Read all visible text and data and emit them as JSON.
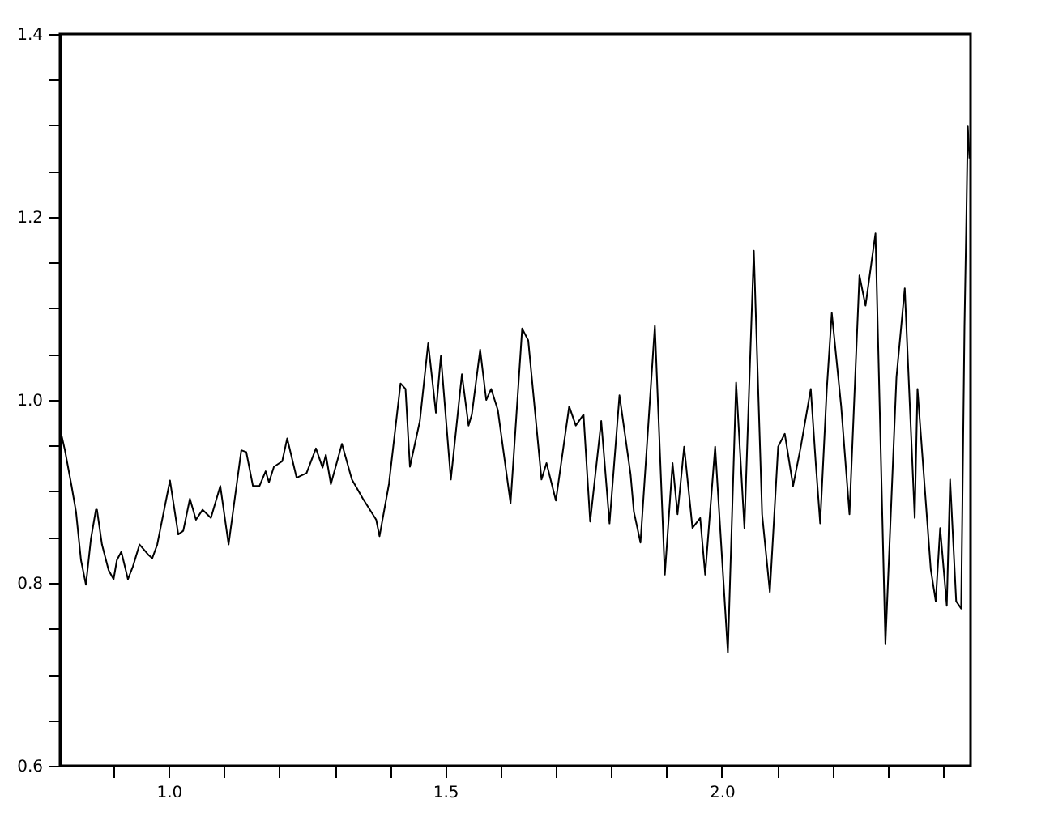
{
  "chart_data": {
    "type": "line",
    "xlim": [
      0.803,
      2.45
    ],
    "ylim": [
      0.6,
      1.4
    ],
    "xticks": [
      {
        "value": 0.9,
        "label": null
      },
      {
        "value": 1.0,
        "label": "1.0"
      },
      {
        "value": 1.1,
        "label": null
      },
      {
        "value": 1.2,
        "label": null
      },
      {
        "value": 1.3,
        "label": null
      },
      {
        "value": 1.4,
        "label": null
      },
      {
        "value": 1.5,
        "label": "1.5"
      },
      {
        "value": 1.6,
        "label": null
      },
      {
        "value": 1.7,
        "label": null
      },
      {
        "value": 1.8,
        "label": null
      },
      {
        "value": 1.9,
        "label": null
      },
      {
        "value": 2.0,
        "label": "2.0"
      },
      {
        "value": 2.1,
        "label": null
      },
      {
        "value": 2.2,
        "label": null
      },
      {
        "value": 2.3,
        "label": null
      },
      {
        "value": 2.4,
        "label": null
      }
    ],
    "yticks": [
      {
        "value": 0.6,
        "label": "0.6"
      },
      {
        "value": 0.65,
        "label": null
      },
      {
        "value": 0.7,
        "label": null
      },
      {
        "value": 0.75,
        "label": null
      },
      {
        "value": 0.8,
        "label": "0.8"
      },
      {
        "value": 0.85,
        "label": null
      },
      {
        "value": 0.9,
        "label": null
      },
      {
        "value": 0.95,
        "label": null
      },
      {
        "value": 1.0,
        "label": "1.0"
      },
      {
        "value": 1.05,
        "label": null
      },
      {
        "value": 1.1,
        "label": null
      },
      {
        "value": 1.15,
        "label": null
      },
      {
        "value": 1.2,
        "label": "1.2"
      },
      {
        "value": 1.25,
        "label": null
      },
      {
        "value": 1.3,
        "label": null
      },
      {
        "value": 1.35,
        "label": null
      },
      {
        "value": 1.4,
        "label": "1.4"
      }
    ],
    "x": [
      0.806,
      0.812,
      0.824,
      0.832,
      0.841,
      0.85,
      0.859,
      0.868,
      0.87,
      0.879,
      0.891,
      0.9,
      0.906,
      0.914,
      0.926,
      0.935,
      0.947,
      0.964,
      0.97,
      0.979,
      1.002,
      1.017,
      1.026,
      1.038,
      1.049,
      1.061,
      1.076,
      1.093,
      1.108,
      1.131,
      1.14,
      1.152,
      1.164,
      1.175,
      1.181,
      1.19,
      1.205,
      1.214,
      1.231,
      1.249,
      1.266,
      1.278,
      1.284,
      1.293,
      1.313,
      1.331,
      1.351,
      1.375,
      1.381,
      1.398,
      1.419,
      1.428,
      1.436,
      1.454,
      1.469,
      1.483,
      1.492,
      1.51,
      1.53,
      1.542,
      1.548,
      1.563,
      1.574,
      1.583,
      1.595,
      1.618,
      1.639,
      1.65,
      1.674,
      1.683,
      1.7,
      1.724,
      1.736,
      1.75,
      1.762,
      1.782,
      1.797,
      1.815,
      1.835,
      1.841,
      1.853,
      1.879,
      1.897,
      1.911,
      1.92,
      1.932,
      1.947,
      1.961,
      1.97,
      1.988,
      2.011,
      2.026,
      2.041,
      2.058,
      2.073,
      2.087,
      2.102,
      2.114,
      2.129,
      2.143,
      2.161,
      2.17,
      2.178,
      2.19,
      2.199,
      2.216,
      2.231,
      2.249,
      2.26,
      2.278,
      2.296,
      2.316,
      2.331,
      2.349,
      2.354,
      2.378,
      2.387,
      2.395,
      2.407,
      2.413,
      2.424,
      2.433,
      2.439,
      2.442,
      2.445,
      2.448
    ],
    "values": [
      0.961,
      0.945,
      0.906,
      0.878,
      0.825,
      0.798,
      0.848,
      0.88,
      0.88,
      0.842,
      0.814,
      0.804,
      0.825,
      0.834,
      0.804,
      0.818,
      0.842,
      0.83,
      0.827,
      0.842,
      0.912,
      0.853,
      0.857,
      0.892,
      0.869,
      0.88,
      0.871,
      0.906,
      0.842,
      0.945,
      0.943,
      0.906,
      0.906,
      0.922,
      0.91,
      0.927,
      0.933,
      0.958,
      0.915,
      0.92,
      0.947,
      0.926,
      0.94,
      0.908,
      0.952,
      0.913,
      0.892,
      0.869,
      0.851,
      0.908,
      1.018,
      1.012,
      0.927,
      0.977,
      1.062,
      0.986,
      1.048,
      0.913,
      1.028,
      0.972,
      0.984,
      1.055,
      1.0,
      1.012,
      0.989,
      0.887,
      1.078,
      1.065,
      0.913,
      0.931,
      0.89,
      0.993,
      0.972,
      0.984,
      0.867,
      0.977,
      0.865,
      1.005,
      0.919,
      0.878,
      0.844,
      1.081,
      0.809,
      0.931,
      0.875,
      0.949,
      0.86,
      0.871,
      0.809,
      0.949,
      0.724,
      1.019,
      0.86,
      1.163,
      0.875,
      0.79,
      0.949,
      0.963,
      0.906,
      0.949,
      1.012,
      0.931,
      0.865,
      1.012,
      1.095,
      0.993,
      0.875,
      1.136,
      1.103,
      1.182,
      0.733,
      1.025,
      1.122,
      0.871,
      1.012,
      0.815,
      0.78,
      0.86,
      0.775,
      0.913,
      0.78,
      0.772,
      1.081,
      1.184,
      1.299,
      1.264
    ]
  }
}
